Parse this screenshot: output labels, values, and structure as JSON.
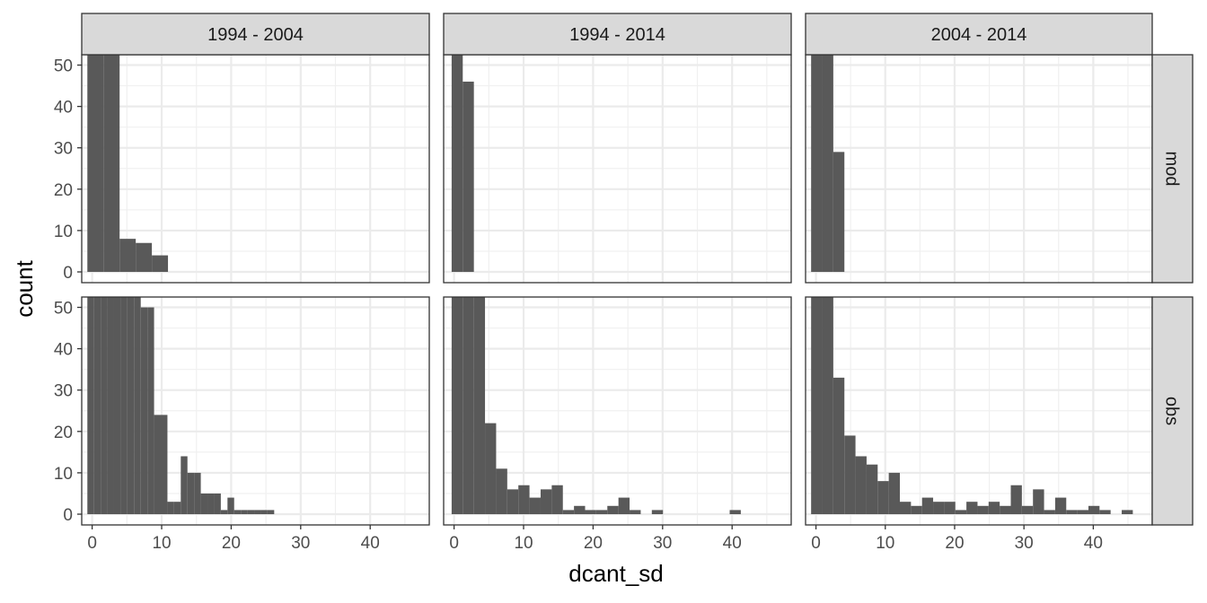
{
  "chart_data": {
    "type": "bar",
    "xlabel": "dcant_sd",
    "ylabel": "count",
    "xlim": [
      -1.5,
      48.5
    ],
    "ylim": [
      -2.6,
      52.5
    ],
    "x_ticks": [
      0,
      10,
      20,
      30,
      40
    ],
    "y_ticks": [
      0,
      10,
      20,
      30,
      40,
      50
    ],
    "x_tick_labels": [
      "0",
      "10",
      "20",
      "30",
      "40"
    ],
    "y_tick_labels": [
      "0",
      "10",
      "20",
      "30",
      "40",
      "50"
    ],
    "grid": true,
    "bar_color": "#595959",
    "columns": [
      "1994 - 2004",
      "1994 - 2014",
      "2004 - 2014"
    ],
    "rows": [
      "mod",
      "obs"
    ],
    "panels": [
      {
        "column": "1994 - 2004",
        "row": "mod",
        "binwidth": 2.32,
        "bins": [
          {
            "x0": -0.69,
            "count": 55
          },
          {
            "x0": 1.63,
            "count": 55
          },
          {
            "x0": 3.95,
            "count": 8
          },
          {
            "x0": 6.27,
            "count": 7
          },
          {
            "x0": 8.59,
            "count": 4
          }
        ]
      },
      {
        "column": "1994 - 2014",
        "row": "mod",
        "binwidth": 1.6,
        "bins": [
          {
            "x0": -0.35,
            "count": 55
          },
          {
            "x0": 1.25,
            "count": 46
          },
          {
            "x0": 2.85,
            "count": 0
          }
        ]
      },
      {
        "column": "2004 - 2014",
        "row": "mod",
        "binwidth": 1.6,
        "bins": [
          {
            "x0": -0.7,
            "count": 55
          },
          {
            "x0": 0.9,
            "count": 55
          },
          {
            "x0": 2.5,
            "count": 29
          }
        ]
      },
      {
        "column": "1994 - 2004",
        "row": "obs",
        "binwidth": 0.96,
        "bins": [
          {
            "x0": -0.69,
            "count": 55
          },
          {
            "x0": 0.27,
            "count": 55
          },
          {
            "x0": 1.23,
            "count": 55
          },
          {
            "x0": 2.19,
            "count": 55
          },
          {
            "x0": 3.15,
            "count": 55
          },
          {
            "x0": 4.11,
            "count": 55
          },
          {
            "x0": 5.07,
            "count": 55
          },
          {
            "x0": 6.03,
            "count": 55
          },
          {
            "x0": 6.99,
            "count": 50
          },
          {
            "x0": 7.95,
            "count": 50
          },
          {
            "x0": 8.91,
            "count": 24
          },
          {
            "x0": 9.87,
            "count": 24
          },
          {
            "x0": 10.83,
            "count": 3
          },
          {
            "x0": 11.79,
            "count": 3
          },
          {
            "x0": 12.75,
            "count": 14
          },
          {
            "x0": 13.71,
            "count": 10
          },
          {
            "x0": 14.67,
            "count": 10
          },
          {
            "x0": 15.63,
            "count": 5
          },
          {
            "x0": 16.59,
            "count": 5
          },
          {
            "x0": 17.55,
            "count": 5
          },
          {
            "x0": 18.51,
            "count": 1
          },
          {
            "x0": 19.47,
            "count": 4
          },
          {
            "x0": 20.43,
            "count": 1
          },
          {
            "x0": 21.39,
            "count": 1
          },
          {
            "x0": 22.35,
            "count": 1
          },
          {
            "x0": 23.31,
            "count": 1
          },
          {
            "x0": 24.27,
            "count": 1
          },
          {
            "x0": 25.23,
            "count": 1
          }
        ]
      },
      {
        "column": "1994 - 2014",
        "row": "obs",
        "binwidth": 1.6,
        "bins": [
          {
            "x0": -0.35,
            "count": 55
          },
          {
            "x0": 1.25,
            "count": 55
          },
          {
            "x0": 2.85,
            "count": 55
          },
          {
            "x0": 4.45,
            "count": 22
          },
          {
            "x0": 6.05,
            "count": 11
          },
          {
            "x0": 7.65,
            "count": 6
          },
          {
            "x0": 9.25,
            "count": 7
          },
          {
            "x0": 10.85,
            "count": 4
          },
          {
            "x0": 12.45,
            "count": 6
          },
          {
            "x0": 14.05,
            "count": 7
          },
          {
            "x0": 15.65,
            "count": 1
          },
          {
            "x0": 17.25,
            "count": 2
          },
          {
            "x0": 18.85,
            "count": 1
          },
          {
            "x0": 20.45,
            "count": 1
          },
          {
            "x0": 22.05,
            "count": 2
          },
          {
            "x0": 23.65,
            "count": 4
          },
          {
            "x0": 25.25,
            "count": 1
          },
          {
            "x0": 26.85,
            "count": 0
          },
          {
            "x0": 28.45,
            "count": 1
          },
          {
            "x0": 30.05,
            "count": 0
          },
          {
            "x0": 31.65,
            "count": 0
          },
          {
            "x0": 33.25,
            "count": 0
          },
          {
            "x0": 34.85,
            "count": 0
          },
          {
            "x0": 36.45,
            "count": 0
          },
          {
            "x0": 38.05,
            "count": 0
          },
          {
            "x0": 39.65,
            "count": 1
          }
        ]
      },
      {
        "column": "2004 - 2014",
        "row": "obs",
        "binwidth": 1.6,
        "bins": [
          {
            "x0": -0.7,
            "count": 55
          },
          {
            "x0": 0.9,
            "count": 55
          },
          {
            "x0": 2.5,
            "count": 33
          },
          {
            "x0": 4.1,
            "count": 19
          },
          {
            "x0": 5.7,
            "count": 14
          },
          {
            "x0": 7.3,
            "count": 12
          },
          {
            "x0": 8.9,
            "count": 8
          },
          {
            "x0": 10.5,
            "count": 10
          },
          {
            "x0": 12.1,
            "count": 3
          },
          {
            "x0": 13.7,
            "count": 2
          },
          {
            "x0": 15.3,
            "count": 4
          },
          {
            "x0": 16.9,
            "count": 3
          },
          {
            "x0": 18.5,
            "count": 3
          },
          {
            "x0": 20.1,
            "count": 1
          },
          {
            "x0": 21.7,
            "count": 3
          },
          {
            "x0": 23.3,
            "count": 2
          },
          {
            "x0": 24.9,
            "count": 3
          },
          {
            "x0": 26.5,
            "count": 2
          },
          {
            "x0": 28.1,
            "count": 7
          },
          {
            "x0": 29.7,
            "count": 2
          },
          {
            "x0": 31.3,
            "count": 6
          },
          {
            "x0": 32.9,
            "count": 1
          },
          {
            "x0": 34.5,
            "count": 4
          },
          {
            "x0": 36.1,
            "count": 1
          },
          {
            "x0": 37.7,
            "count": 1
          },
          {
            "x0": 39.3,
            "count": 2
          },
          {
            "x0": 40.9,
            "count": 1
          },
          {
            "x0": 42.5,
            "count": 0
          },
          {
            "x0": 44.1,
            "count": 1
          }
        ]
      }
    ]
  }
}
